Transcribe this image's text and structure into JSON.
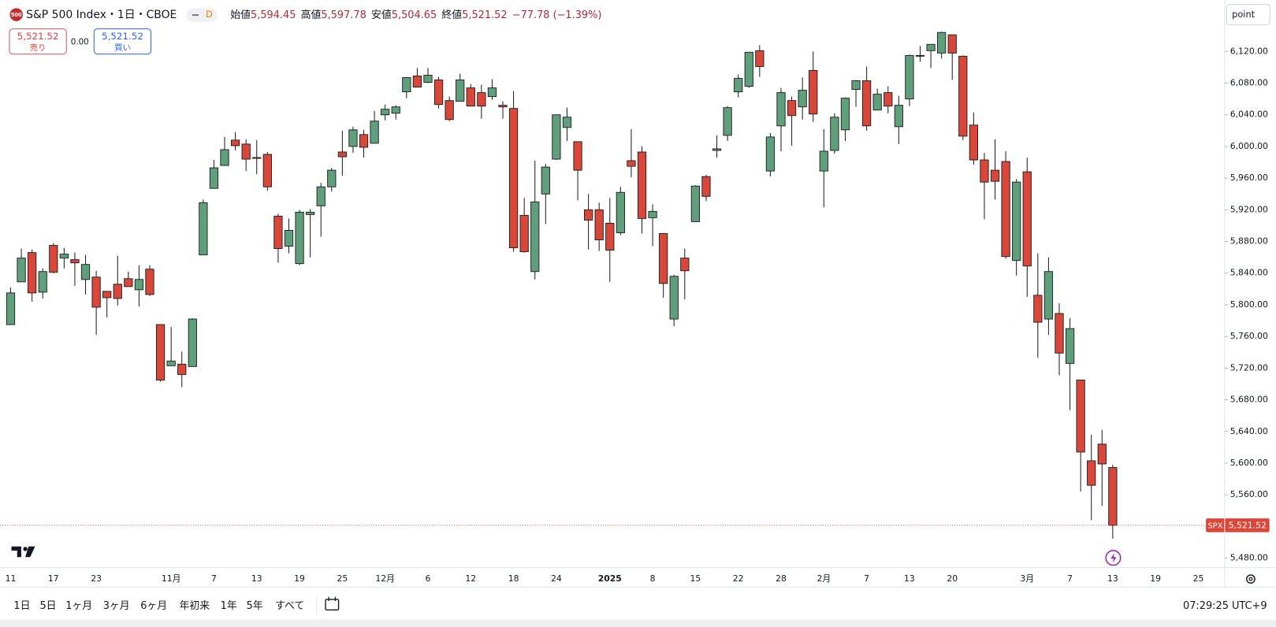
{
  "header": {
    "logo": "500",
    "symbol": "S&P 500 Index・1日・CBOE",
    "interval_badge": "D",
    "ohlc": [
      {
        "label": "始値",
        "value": "5,594.45"
      },
      {
        "label": "高値",
        "value": "5,597.78"
      },
      {
        "label": "安値",
        "value": "5,504.65"
      },
      {
        "label": "終値",
        "value": "5,521.52"
      }
    ],
    "change": "−77.78 (−1.39%)"
  },
  "trade": {
    "sell": {
      "price": "5,521.52",
      "label": "売り"
    },
    "spread": "0.00",
    "buy": {
      "price": "5,521.52",
      "label": "買い"
    }
  },
  "scale_mode": "point",
  "price_label": {
    "symbol": "SPX",
    "label": "5,521.52",
    "value": 5521.52
  },
  "toolbar": {
    "ranges": [
      "1日",
      "5日",
      "1ヶ月",
      "3ヶ月",
      "6ヶ月",
      "年初来",
      "1年",
      "5年",
      "すべて"
    ],
    "clock": "07:29:25 UTC+9"
  },
  "chart_data": {
    "type": "candlestick",
    "up_color": "#5f9f7c",
    "down_color": "#d9473b",
    "outline_color": "#1e1e1e",
    "ylim": [
      5468,
      6185
    ],
    "yticks": [
      {
        "value": 5480,
        "label": "5,480.00"
      },
      {
        "value": 5520,
        "label": "5,520.00"
      },
      {
        "value": 5560,
        "label": "5,560.00"
      },
      {
        "value": 5600,
        "label": "5,600.00"
      },
      {
        "value": 5640,
        "label": "5,640.00"
      },
      {
        "value": 5680,
        "label": "5,680.00"
      },
      {
        "value": 5720,
        "label": "5,720.00"
      },
      {
        "value": 5760,
        "label": "5,760.00"
      },
      {
        "value": 5800,
        "label": "5,800.00"
      },
      {
        "value": 5840,
        "label": "5,840.00"
      },
      {
        "value": 5880,
        "label": "5,880.00"
      },
      {
        "value": 5920,
        "label": "5,920.00"
      },
      {
        "value": 5960,
        "label": "5,960.00"
      },
      {
        "value": 6000,
        "label": "6,000.00"
      },
      {
        "value": 6040,
        "label": "6,040.00"
      },
      {
        "value": 6080,
        "label": "6,080.00"
      },
      {
        "value": 6120,
        "label": "6,120.00"
      }
    ],
    "categories": [
      "11",
      null,
      null,
      null,
      "17",
      null,
      null,
      null,
      "23",
      null,
      null,
      null,
      null,
      null,
      null,
      "11月",
      null,
      null,
      null,
      "7",
      null,
      null,
      null,
      "13",
      null,
      null,
      null,
      "19",
      null,
      null,
      null,
      "25",
      null,
      null,
      null,
      "12月",
      null,
      null,
      null,
      "6",
      null,
      null,
      null,
      "12",
      null,
      null,
      null,
      "18",
      null,
      null,
      null,
      "24",
      null,
      null,
      null,
      null,
      "2025",
      null,
      null,
      null,
      "8",
      null,
      null,
      null,
      "15",
      null,
      null,
      null,
      "22",
      null,
      null,
      null,
      "28",
      null,
      null,
      null,
      "2月",
      null,
      null,
      null,
      "7",
      null,
      null,
      null,
      "13",
      null,
      null,
      null,
      "20",
      null,
      null,
      null,
      null,
      null,
      null,
      "3月",
      null,
      null,
      null,
      "7",
      null,
      null,
      null,
      "13",
      null,
      null,
      null,
      "19",
      null,
      null,
      null,
      "25"
    ],
    "open": [
      5775,
      5829,
      5866,
      5816,
      5875,
      5859,
      5857,
      5832,
      5835,
      5817,
      5826,
      5833,
      5819,
      5845,
      5775,
      5723,
      5725,
      5722,
      5863,
      5947,
      5976,
      6008,
      6003,
      5986,
      5990,
      5912,
      5874,
      5852,
      5914,
      5925,
      5949,
      5993,
      6000,
      6015,
      6004,
      6040,
      6042,
      6069,
      6089,
      6081,
      6084,
      6058,
      6057,
      6074,
      6068,
      6063,
      6052,
      6048,
      5913,
      5842,
      5940,
      5984,
      6024,
      6006,
      5920,
      5920,
      5903,
      5891,
      5982,
      5993,
      5910,
      5890,
      5782,
      5859,
      5905,
      5962,
      5995,
      6014,
      6069,
      6076,
      6121,
      5969,
      6026,
      6058,
      6050,
      6096,
      5969,
      5995,
      6021,
      6072,
      6083,
      6046,
      6068,
      6025,
      6060,
      6114,
      6121,
      6118,
      6141,
      6114,
      6027,
      5983,
      5970,
      5981,
      5856,
      5968,
      5812,
      5782,
      5789,
      5726,
      5705,
      5603,
      5624,
      5594.45,
      null,
      null,
      null,
      null,
      null,
      null,
      null,
      null
    ],
    "high": [
      5822,
      5871,
      5870,
      5846,
      5878,
      5872,
      5866,
      5863,
      5843,
      5817,
      5862,
      5842,
      5850,
      5850,
      5775,
      5772,
      5741,
      5783,
      5933,
      5983,
      6012,
      6018,
      6009,
      6008,
      5993,
      5915,
      5909,
      5920,
      5921,
      5954,
      5973,
      6020,
      6025,
      6021,
      6045,
      6053,
      6052,
      6087,
      6099,
      6099,
      6088,
      6063,
      6092,
      6079,
      6078,
      6085,
      6057,
      6070,
      5935,
      5982,
      5978,
      6040,
      6049,
      6006,
      5940,
      5929,
      5935,
      5949,
      6022,
      6000,
      5927,
      5890,
      5838,
      5871,
      5951,
      5964,
      6014,
      6051,
      6091,
      6118,
      6128,
      6017,
      6074,
      6063,
      6087,
      6120,
      6022,
      6042,
      6062,
      6084,
      6101,
      6073,
      6076,
      6064,
      6116,
      6127,
      6129,
      6145,
      6141,
      6115,
      6043,
      5992,
      6009,
      5994,
      5959,
      5986,
      5865,
      5860,
      5802,
      5783,
      5705,
      5636,
      5642,
      5597.78,
      null,
      null,
      null,
      null,
      null,
      null,
      null,
      null
    ],
    "low": [
      5775,
      5829,
      5804,
      5808,
      5840,
      5846,
      5824,
      5813,
      5762,
      5784,
      5799,
      5823,
      5798,
      5811,
      5703,
      5723,
      5696,
      5722,
      5863,
      5947,
      5976,
      5995,
      5969,
      5965,
      5944,
      5853,
      5865,
      5850,
      5860,
      5886,
      5943,
      5963,
      5992,
      5986,
      6004,
      6033,
      6034,
      6061,
      6075,
      6080,
      6048,
      6032,
      6057,
      6051,
      6035,
      6059,
      6035,
      5867,
      5866,
      5832,
      5902,
      5983,
      6007,
      5932,
      5870,
      5868,
      5829,
      5888,
      5961,
      5890,
      5874,
      5809,
      5773,
      5807,
      5905,
      5931,
      5986,
      6007,
      6062,
      6074,
      6088,
      5962,
      5994,
      6001,
      6034,
      6031,
      5923,
      5991,
      6007,
      6050,
      6020,
      6046,
      6042,
      6003,
      6051,
      6107,
      6099,
      6111,
      6084,
      6008,
      5977,
      5908,
      5933,
      5858,
      5837,
      5810,
      5733,
      5762,
      5711,
      5667,
      5564,
      5528,
      5546,
      5504.65,
      null,
      null,
      null,
      null,
      null,
      null,
      null,
      null
    ],
    "close": [
      5815,
      5859,
      5815,
      5842,
      5841,
      5864,
      5853,
      5851,
      5797,
      5809,
      5808,
      5823,
      5832,
      5813,
      5705,
      5729,
      5712,
      5782,
      5929,
      5973,
      5996,
      6001,
      5984,
      5985,
      5949,
      5871,
      5894,
      5917,
      5917,
      5949,
      5970,
      5987,
      6021,
      5999,
      6032,
      6047,
      6050,
      6087,
      6075,
      6090,
      6053,
      6034,
      6084,
      6051,
      6051,
      6074,
      6050,
      5872,
      5867,
      5930,
      5974,
      6040,
      6037,
      5970,
      5907,
      5882,
      5869,
      5942,
      5975,
      5909,
      5918,
      5827,
      5836,
      5843,
      5950,
      5937,
      5997,
      6049,
      6086,
      6119,
      6101,
      6012,
      6068,
      6039,
      6071,
      6041,
      5994,
      6037,
      6061,
      6083,
      6026,
      6066,
      6051,
      6052,
      6115,
      6115,
      6129,
      6144,
      6118,
      6013,
      5983,
      5955,
      5956,
      5861,
      5955,
      5849,
      5778,
      5842,
      5739,
      5770,
      5614,
      5572,
      5599,
      5521.52,
      null,
      null,
      null,
      null,
      null,
      null,
      null,
      null
    ]
  }
}
